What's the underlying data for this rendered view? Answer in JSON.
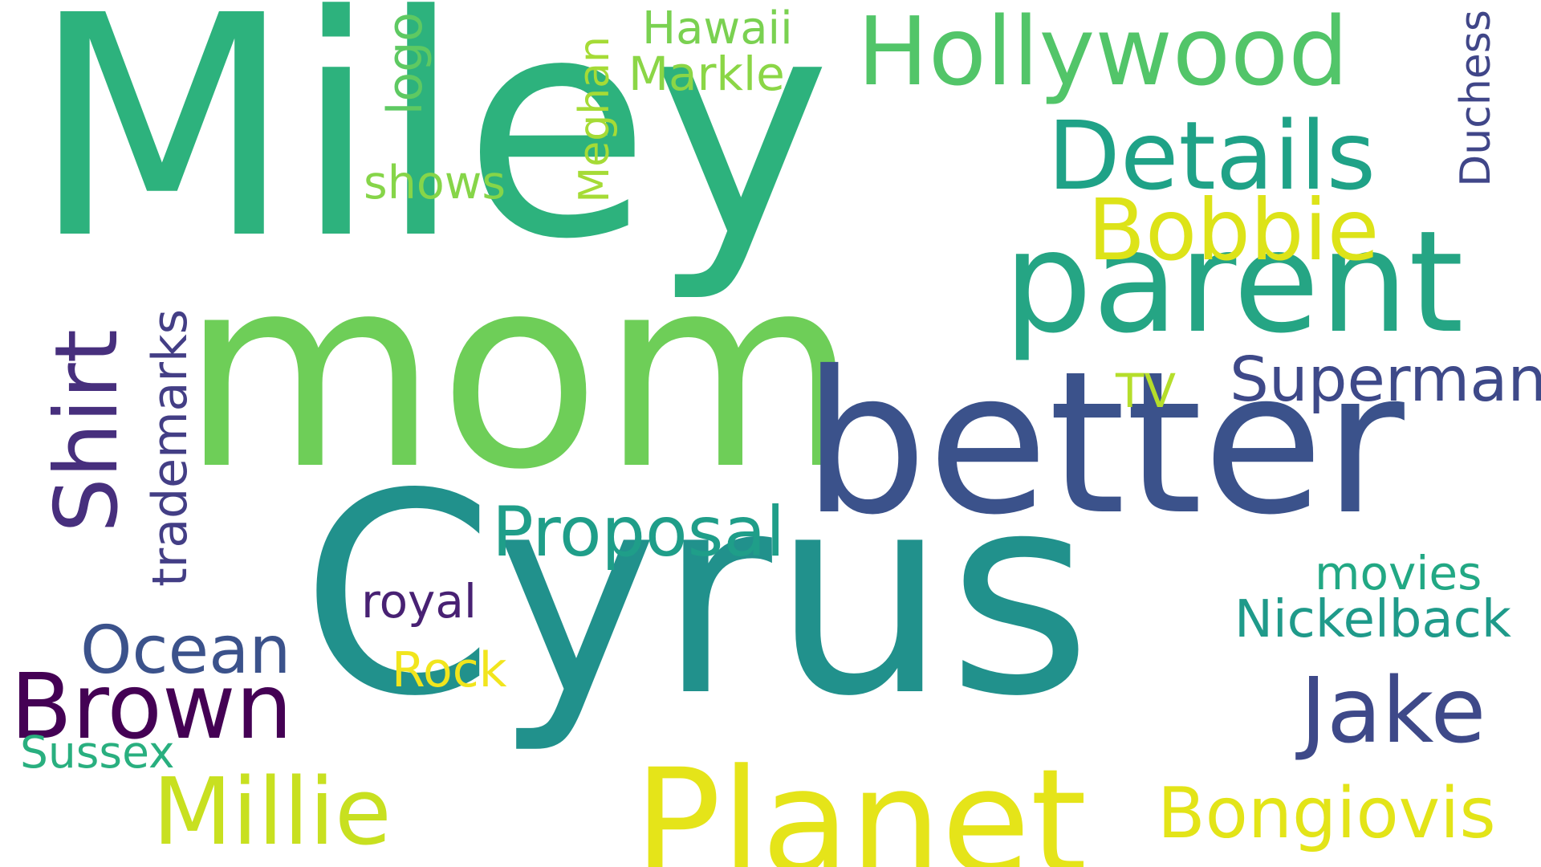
{
  "words": [
    {
      "text": "Miley",
      "color": "#2db27d",
      "vertical": false
    },
    {
      "text": "mom",
      "color": "#6ece58",
      "vertical": false
    },
    {
      "text": "Cyrus",
      "color": "#21918c",
      "vertical": false
    },
    {
      "text": "better",
      "color": "#3b528b",
      "vertical": false
    },
    {
      "text": "parent",
      "color": "#25a584",
      "vertical": false
    },
    {
      "text": "Planet",
      "color": "#e5e419",
      "vertical": false
    },
    {
      "text": "Hollywood",
      "color": "#52c569",
      "vertical": false
    },
    {
      "text": "Details",
      "color": "#1fa287",
      "vertical": false
    },
    {
      "text": "Bobbie",
      "color": "#dde318",
      "vertical": false
    },
    {
      "text": "Superman",
      "color": "#3e4989",
      "vertical": false
    },
    {
      "text": "Shirt",
      "color": "#472f7d",
      "vertical": true
    },
    {
      "text": "Brown",
      "color": "#440154",
      "vertical": false
    },
    {
      "text": "Millie",
      "color": "#c8e020",
      "vertical": false
    },
    {
      "text": "Jake",
      "color": "#3e4989",
      "vertical": false
    },
    {
      "text": "Bongiovis",
      "color": "#e3e418",
      "vertical": false
    },
    {
      "text": "Proposal",
      "color": "#1f9e89",
      "vertical": false
    },
    {
      "text": "Ocean",
      "color": "#3b528b",
      "vertical": false
    },
    {
      "text": "Nickelback",
      "color": "#1f9a8a",
      "vertical": false
    },
    {
      "text": "movies",
      "color": "#22a884",
      "vertical": false
    },
    {
      "text": "trademarks",
      "color": "#433e85",
      "vertical": true
    },
    {
      "text": "logo",
      "color": "#5ec962",
      "vertical": true
    },
    {
      "text": "Meghan",
      "color": "#a5db36",
      "vertical": true
    },
    {
      "text": "Duchess",
      "color": "#404688",
      "vertical": true
    },
    {
      "text": "Hawaii",
      "color": "#7ad151",
      "vertical": false
    },
    {
      "text": "Markle",
      "color": "#8bd646",
      "vertical": false
    },
    {
      "text": "shows",
      "color": "#86d549",
      "vertical": false
    },
    {
      "text": "TV",
      "color": "#b5de2b",
      "vertical": false
    },
    {
      "text": "royal",
      "color": "#482173",
      "vertical": false
    },
    {
      "text": "Rock",
      "color": "#f1e51d",
      "vertical": false
    },
    {
      "text": "Sussex",
      "color": "#29af7f",
      "vertical": false
    }
  ]
}
